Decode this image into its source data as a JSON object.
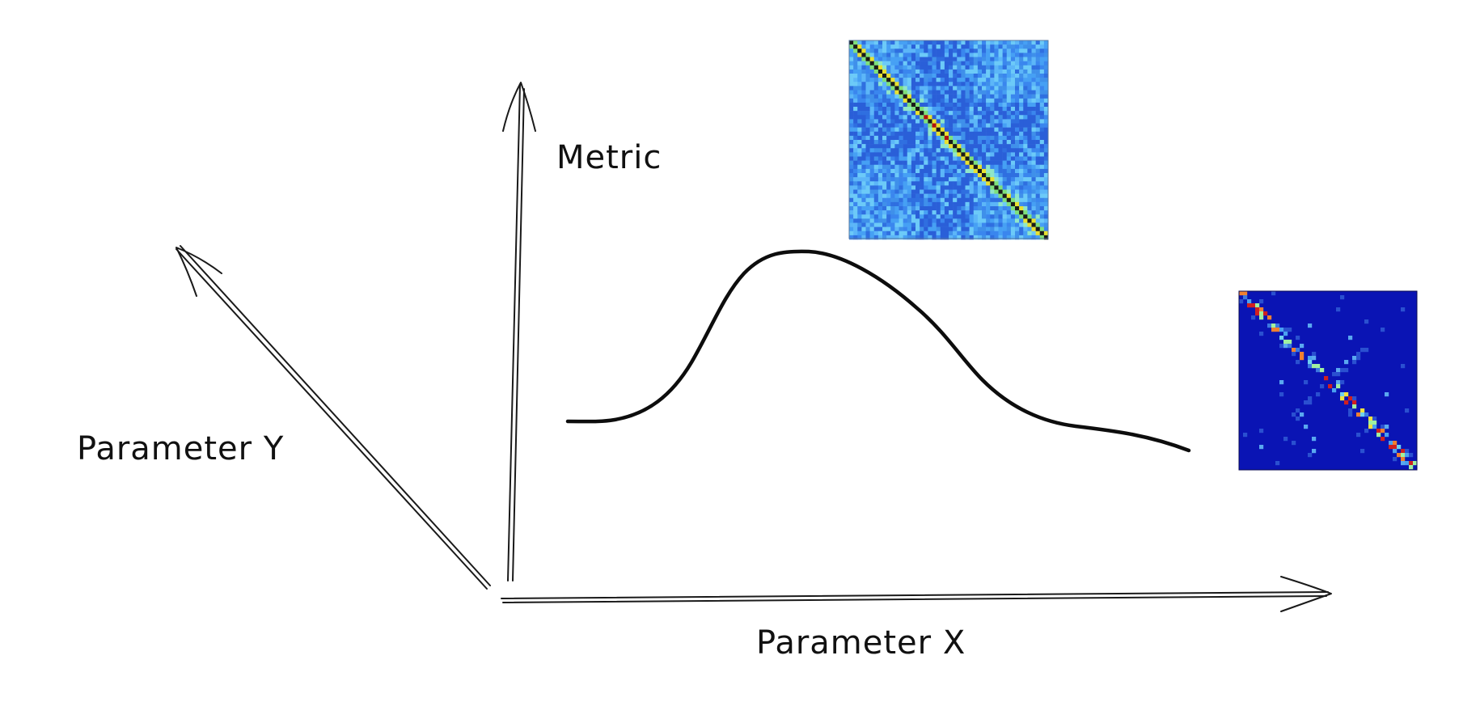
{
  "labels": {
    "y_axis": "Metric",
    "x_axis": "Parameter X",
    "z_axis": "Parameter Y"
  },
  "icons": {
    "left_heatmap": "correlation-matrix-heatmap-icon",
    "right_heatmap": "sparse-correlation-matrix-heatmap-icon"
  },
  "colors": {
    "ink": "#1a1a1a",
    "heatmap_left_base": "#3fa0f0",
    "heatmap_right_base": "#0a14b4",
    "heatmap_diagonal": "#222222"
  }
}
